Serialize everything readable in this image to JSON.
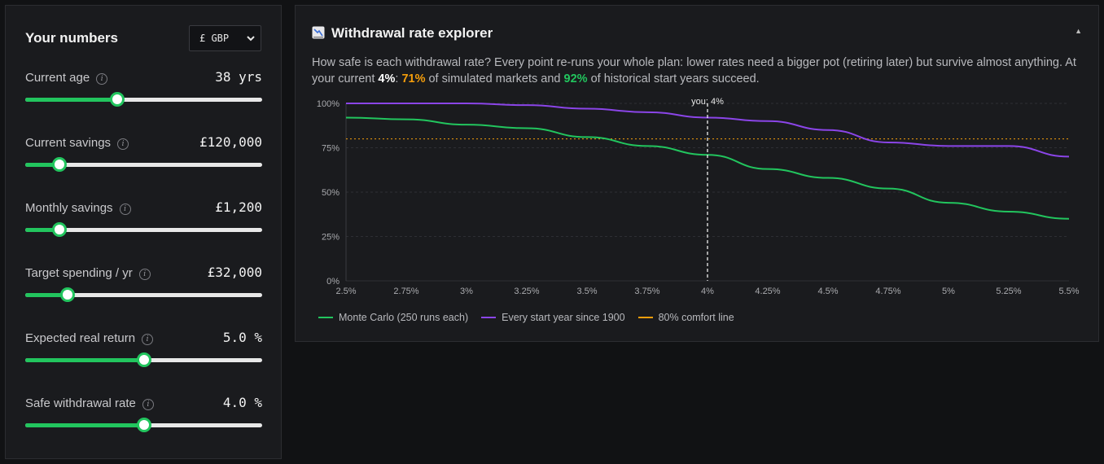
{
  "sidebar": {
    "title": "Your numbers",
    "currency": "£ GBP",
    "fields": [
      {
        "label": "Current age",
        "value": "38 yrs",
        "fraction": 0.39
      },
      {
        "label": "Current savings",
        "value": "£120,000",
        "fraction": 0.145
      },
      {
        "label": "Monthly savings",
        "value": "£1,200",
        "fraction": 0.145
      },
      {
        "label": "Target spending / yr",
        "value": "£32,000",
        "fraction": 0.18
      },
      {
        "label": "Expected real return",
        "value": "5.0 %",
        "fraction": 0.5
      },
      {
        "label": "Safe withdrawal rate",
        "value": "4.0 %",
        "fraction": 0.5
      }
    ],
    "info_glyph": "i"
  },
  "explorer": {
    "title": "Withdrawal rate explorer",
    "collapse_glyph": "▲",
    "desc_part1": "How safe is each withdrawal rate? Every point re-runs your whole plan: lower rates need a bigger pot (retiring later) but survive almost anything. At your current ",
    "desc_rate": "4%",
    "desc_part2": ": ",
    "desc_mc": "71%",
    "desc_part3": " of simulated markets and ",
    "desc_hist": "92%",
    "desc_part4": " of historical start years succeed."
  },
  "colors": {
    "accent_green": "#22c55e",
    "purple": "#8b45e8",
    "orange": "#f59e0b"
  },
  "chart_data": {
    "type": "line",
    "x": [
      2.5,
      2.75,
      3.0,
      3.25,
      3.5,
      3.75,
      4.0,
      4.25,
      4.5,
      4.75,
      5.0,
      5.25,
      5.5
    ],
    "x_tick_labels": [
      "2.5%",
      "2.75%",
      "3%",
      "3.25%",
      "3.5%",
      "3.75%",
      "4%",
      "4.25%",
      "4.5%",
      "4.75%",
      "5%",
      "5.25%",
      "5.5%"
    ],
    "y_tick_labels": [
      "0%",
      "25%",
      "50%",
      "75%",
      "100%"
    ],
    "y_ticks": [
      0,
      25,
      50,
      75,
      100
    ],
    "ylim": [
      0,
      100
    ],
    "xlim": [
      2.5,
      5.5
    ],
    "series": [
      {
        "name": "Monte Carlo (250 runs each)",
        "color": "#22c55e",
        "values": [
          92,
          91,
          88,
          86,
          81,
          76,
          71,
          63,
          58,
          52,
          44,
          39,
          35
        ]
      },
      {
        "name": "Every start year since 1900",
        "color": "#8b45e8",
        "values": [
          100,
          100,
          100,
          99,
          97,
          95,
          92,
          90,
          85,
          78,
          76,
          76,
          70
        ]
      }
    ],
    "reference_line": {
      "name": "80% comfort line",
      "y": 80,
      "color": "#f59e0b"
    },
    "marker": {
      "x": 4.0,
      "label": "you: 4%"
    },
    "grid": true
  }
}
